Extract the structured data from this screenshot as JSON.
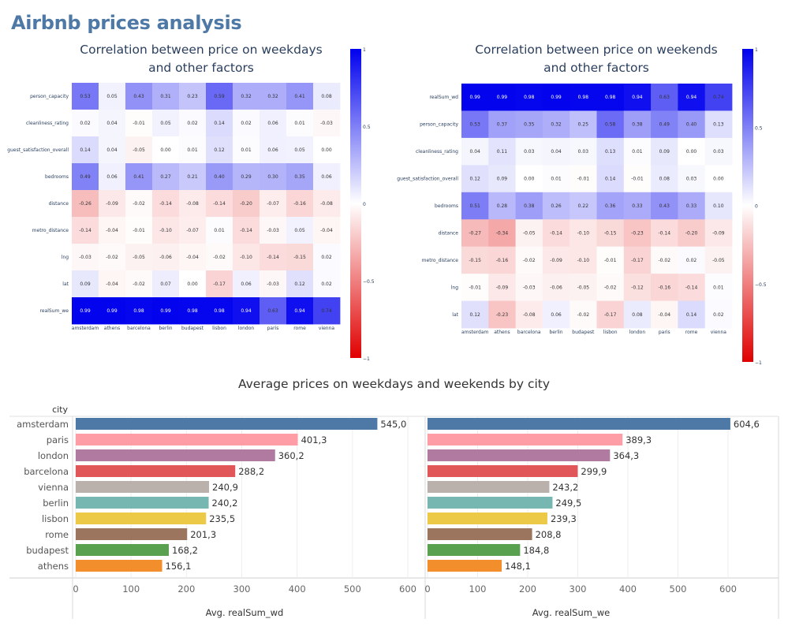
{
  "page": {
    "title": "Airbnb prices analysis"
  },
  "section_title": "Average prices on weekdays and weekends by city",
  "colors": {
    "positive": "#0000ee",
    "negative": "#e00000",
    "neutral": "#ffffff",
    "title": "#4e79a7"
  },
  "chart_data": [
    {
      "type": "heatmap",
      "title_line1": "Correlation between price on weekdays",
      "title_line2": "and other factors",
      "x": [
        "amsterdam",
        "athens",
        "barcelona",
        "berlin",
        "budapest",
        "lisbon",
        "london",
        "paris",
        "rome",
        "vienna"
      ],
      "y": [
        "person_capacity",
        "cleanliness_rating",
        "guest_satisfaction_overall",
        "bedrooms",
        "distance",
        "metro_distance",
        "lng",
        "lat",
        "realSum_we"
      ],
      "z": [
        [
          "0.53",
          "0.05",
          "0.43",
          "0.31",
          "0.23",
          "0.59",
          "0.32",
          "0.32",
          "0.41",
          "0.08"
        ],
        [
          "0.02",
          "0.04",
          "-0.01",
          "0.05",
          "0.02",
          "0.14",
          "0.02",
          "0.06",
          "0.01",
          "-0.03"
        ],
        [
          "0.14",
          "0.04",
          "-0.05",
          "0.00",
          "0.01",
          "0.12",
          "0.01",
          "0.06",
          "0.05",
          "0.00"
        ],
        [
          "0.49",
          "0.06",
          "0.41",
          "0.27",
          "0.21",
          "0.40",
          "0.29",
          "0.30",
          "0.35",
          "0.06"
        ],
        [
          "-0.26",
          "-0.09",
          "-0.02",
          "-0.14",
          "-0.08",
          "-0.14",
          "-0.20",
          "-0.07",
          "-0.16",
          "-0.08"
        ],
        [
          "-0.14",
          "-0.04",
          "-0.01",
          "-0.10",
          "-0.07",
          "0.01",
          "-0.14",
          "-0.03",
          "0.05",
          "-0.04"
        ],
        [
          "-0.03",
          "-0.02",
          "-0.05",
          "-0.06",
          "-0.04",
          "-0.02",
          "-0.10",
          "-0.14",
          "-0.15",
          "0.02"
        ],
        [
          "0.09",
          "-0.04",
          "-0.02",
          "0.07",
          "0.00",
          "-0.17",
          "0.06",
          "-0.03",
          "0.12",
          "0.02"
        ],
        [
          "0.99",
          "0.99",
          "0.98",
          "0.99",
          "0.98",
          "0.98",
          "0.94",
          "0.63",
          "0.94",
          "0.74"
        ]
      ],
      "colorscale_range": [
        -1,
        1
      ],
      "colorbar_ticks": [
        "1",
        "0.5",
        "0",
        "−0.5",
        "−1"
      ]
    },
    {
      "type": "heatmap",
      "title_line1": "Correlation between price on weekends",
      "title_line2": "and other factors",
      "x": [
        "amsterdam",
        "athens",
        "barcelona",
        "berlin",
        "budapest",
        "lisbon",
        "london",
        "paris",
        "rome",
        "vienna"
      ],
      "y": [
        "realSum_wd",
        "person_capacity",
        "cleanliness_rating",
        "guest_satisfaction_overall",
        "bedrooms",
        "distance",
        "metro_distance",
        "lng",
        "lat"
      ],
      "z": [
        [
          "0.99",
          "0.99",
          "0.98",
          "0.99",
          "0.98",
          "0.98",
          "0.94",
          "0.63",
          "0.94",
          "0.74"
        ],
        [
          "0.53",
          "0.37",
          "0.35",
          "0.32",
          "0.25",
          "0.58",
          "0.38",
          "0.49",
          "0.40",
          "0.13"
        ],
        [
          "0.04",
          "0.11",
          "0.03",
          "0.04",
          "0.03",
          "0.13",
          "0.01",
          "0.09",
          "0.00",
          "0.03"
        ],
        [
          "0.12",
          "0.09",
          "0.00",
          "0.01",
          "-0.01",
          "0.14",
          "-0.01",
          "0.08",
          "0.03",
          "0.00"
        ],
        [
          "0.51",
          "0.28",
          "0.38",
          "0.26",
          "0.22",
          "0.36",
          "0.33",
          "0.43",
          "0.33",
          "0.10"
        ],
        [
          "-0.27",
          "-0.34",
          "-0.05",
          "-0.14",
          "-0.10",
          "-0.15",
          "-0.23",
          "-0.14",
          "-0.20",
          "-0.09"
        ],
        [
          "-0.15",
          "-0.16",
          "-0.02",
          "-0.09",
          "-0.10",
          "-0.01",
          "-0.17",
          "-0.02",
          "0.02",
          "-0.05"
        ],
        [
          "-0.01",
          "-0.09",
          "-0.03",
          "-0.06",
          "-0.05",
          "-0.02",
          "-0.12",
          "-0.16",
          "-0.14",
          "0.01"
        ],
        [
          "0.12",
          "-0.23",
          "-0.08",
          "0.06",
          "-0.02",
          "-0.17",
          "0.08",
          "-0.04",
          "0.14",
          "0.02"
        ]
      ],
      "colorscale_range": [
        -1,
        1
      ],
      "colorbar_ticks": [
        "1",
        "0.5",
        "0",
        "−0.5",
        "−1"
      ]
    },
    {
      "type": "bar",
      "orientation": "horizontal",
      "row_header": "city",
      "categories": [
        "amsterdam",
        "paris",
        "london",
        "barcelona",
        "vienna",
        "berlin",
        "lisbon",
        "rome",
        "budapest",
        "athens"
      ],
      "colors": [
        "#4e79a7",
        "#ff9da7",
        "#b07aa1",
        "#e15759",
        "#bab0ac",
        "#76b7b2",
        "#edc948",
        "#9c755f",
        "#59a14f",
        "#f28e2b"
      ],
      "series": [
        {
          "name": "Avg. realSum_wd",
          "values": [
            545.0,
            401.3,
            360.2,
            288.2,
            240.9,
            240.2,
            235.5,
            201.3,
            168.2,
            156.1
          ],
          "labels": [
            "545,0",
            "401,3",
            "360,2",
            "288,2",
            "240,9",
            "240,2",
            "235,5",
            "201,3",
            "168,2",
            "156,1"
          ]
        },
        {
          "name": "Avg. realSum_we",
          "values": [
            604.6,
            389.3,
            364.3,
            299.9,
            243.2,
            249.5,
            239.3,
            208.8,
            184.8,
            148.1
          ],
          "labels": [
            "604,6",
            "389,3",
            "364,3",
            "299,9",
            "243,2",
            "249,5",
            "239,3",
            "208,8",
            "184,8",
            "148,1"
          ]
        }
      ],
      "xticks": [
        0,
        100,
        200,
        300,
        400,
        500,
        600
      ],
      "xlim": [
        0,
        620
      ]
    }
  ]
}
